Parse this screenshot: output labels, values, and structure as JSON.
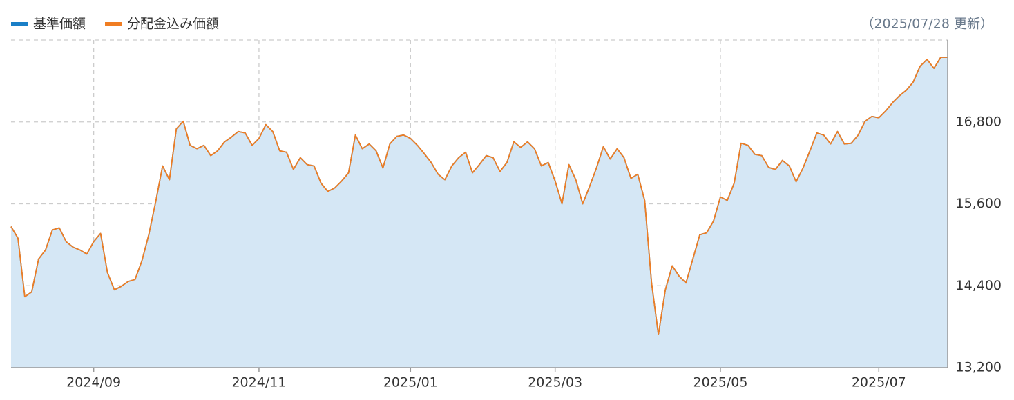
{
  "chart_data": {
    "type": "area-line",
    "annotation": "（2025/07/28 更新）",
    "categories": [
      null,
      null,
      null,
      null,
      null,
      null,
      null,
      null,
      null,
      null,
      null,
      null,
      "2024/09",
      null,
      null,
      null,
      null,
      null,
      null,
      null,
      null,
      null,
      null,
      null,
      null,
      null,
      null,
      null,
      null,
      null,
      null,
      null,
      null,
      null,
      null,
      null,
      "2024/11",
      null,
      null,
      null,
      null,
      null,
      null,
      null,
      null,
      null,
      null,
      null,
      null,
      null,
      null,
      null,
      null,
      null,
      null,
      null,
      null,
      null,
      "2025/01",
      null,
      null,
      null,
      null,
      null,
      null,
      null,
      null,
      null,
      null,
      null,
      null,
      null,
      null,
      null,
      null,
      null,
      null,
      null,
      null,
      "2025/03",
      null,
      null,
      null,
      null,
      null,
      null,
      null,
      null,
      null,
      null,
      null,
      null,
      null,
      null,
      null,
      null,
      null,
      null,
      null,
      null,
      null,
      null,
      null,
      "2025/05",
      null,
      null,
      null,
      null,
      null,
      null,
      null,
      null,
      null,
      null,
      null,
      null,
      null,
      null,
      null,
      null,
      null,
      null,
      null,
      null,
      null,
      null,
      "2025/07",
      null,
      null,
      null,
      null,
      null,
      null,
      null,
      null,
      null,
      null
    ],
    "series": [
      {
        "name": "基準価額",
        "color": "#1a7fc7",
        "fill": "#d5e7f5",
        "values": [
          15267,
          15096,
          14239,
          14309,
          14793,
          14924,
          15217,
          15247,
          15045,
          14965,
          14924,
          14864,
          15045,
          15166,
          14592,
          14340,
          14390,
          14461,
          14491,
          14763,
          15146,
          15630,
          16155,
          15953,
          16699,
          16810,
          16457,
          16407,
          16457,
          16306,
          16377,
          16508,
          16578,
          16659,
          16638,
          16457,
          16558,
          16760,
          16659,
          16377,
          16356,
          16104,
          16276,
          16175,
          16155,
          15903,
          15781,
          15832,
          15933,
          16054,
          16608,
          16407,
          16477,
          16377,
          16125,
          16477,
          16588,
          16608,
          16558,
          16457,
          16336,
          16205,
          16034,
          15953,
          16155,
          16276,
          16356,
          16054,
          16175,
          16306,
          16276,
          16074,
          16205,
          16508,
          16427,
          16508,
          16407,
          16155,
          16205,
          15933,
          15600,
          16175,
          15953,
          15600,
          15852,
          16125,
          16437,
          16256,
          16407,
          16276,
          15973,
          16034,
          15650,
          14440,
          13684,
          14340,
          14692,
          14541,
          14440,
          14793,
          15146,
          15176,
          15348,
          15701,
          15650,
          15903,
          16487,
          16457,
          16326,
          16306,
          16134,
          16104,
          16236,
          16155,
          15923,
          16125,
          16377,
          16638,
          16608,
          16477,
          16659,
          16477,
          16487,
          16608,
          16810,
          16881,
          16860,
          16961,
          17082,
          17183,
          17264,
          17385,
          17617,
          17717,
          17586,
          17747,
          17747
        ]
      },
      {
        "name": "分配金込み価額",
        "color": "#f07d22",
        "values": [
          15267,
          15096,
          14239,
          14309,
          14793,
          14924,
          15217,
          15247,
          15045,
          14965,
          14924,
          14864,
          15045,
          15166,
          14592,
          14340,
          14390,
          14461,
          14491,
          14763,
          15146,
          15630,
          16155,
          15953,
          16699,
          16810,
          16457,
          16407,
          16457,
          16306,
          16377,
          16508,
          16578,
          16659,
          16638,
          16457,
          16558,
          16760,
          16659,
          16377,
          16356,
          16104,
          16276,
          16175,
          16155,
          15903,
          15781,
          15832,
          15933,
          16054,
          16608,
          16407,
          16477,
          16377,
          16125,
          16477,
          16588,
          16608,
          16558,
          16457,
          16336,
          16205,
          16034,
          15953,
          16155,
          16276,
          16356,
          16054,
          16175,
          16306,
          16276,
          16074,
          16205,
          16508,
          16427,
          16508,
          16407,
          16155,
          16205,
          15933,
          15600,
          16175,
          15953,
          15600,
          15852,
          16125,
          16437,
          16256,
          16407,
          16276,
          15973,
          16034,
          15650,
          14440,
          13684,
          14340,
          14692,
          14541,
          14440,
          14793,
          15146,
          15176,
          15348,
          15701,
          15650,
          15903,
          16487,
          16457,
          16326,
          16306,
          16134,
          16104,
          16236,
          16155,
          15923,
          16125,
          16377,
          16638,
          16608,
          16477,
          16659,
          16477,
          16487,
          16608,
          16810,
          16881,
          16860,
          16961,
          17082,
          17183,
          17264,
          17385,
          17617,
          17717,
          17586,
          17747,
          17747
        ]
      }
    ],
    "ylim": [
      13200,
      18000
    ],
    "yticks": [
      {
        "value": 13200,
        "label": "13,200"
      },
      {
        "value": 14400,
        "label": "14,400"
      },
      {
        "value": 15600,
        "label": "15,600"
      },
      {
        "value": 16800,
        "label": "16,800"
      }
    ],
    "grid": true,
    "legend": "top-left"
  }
}
